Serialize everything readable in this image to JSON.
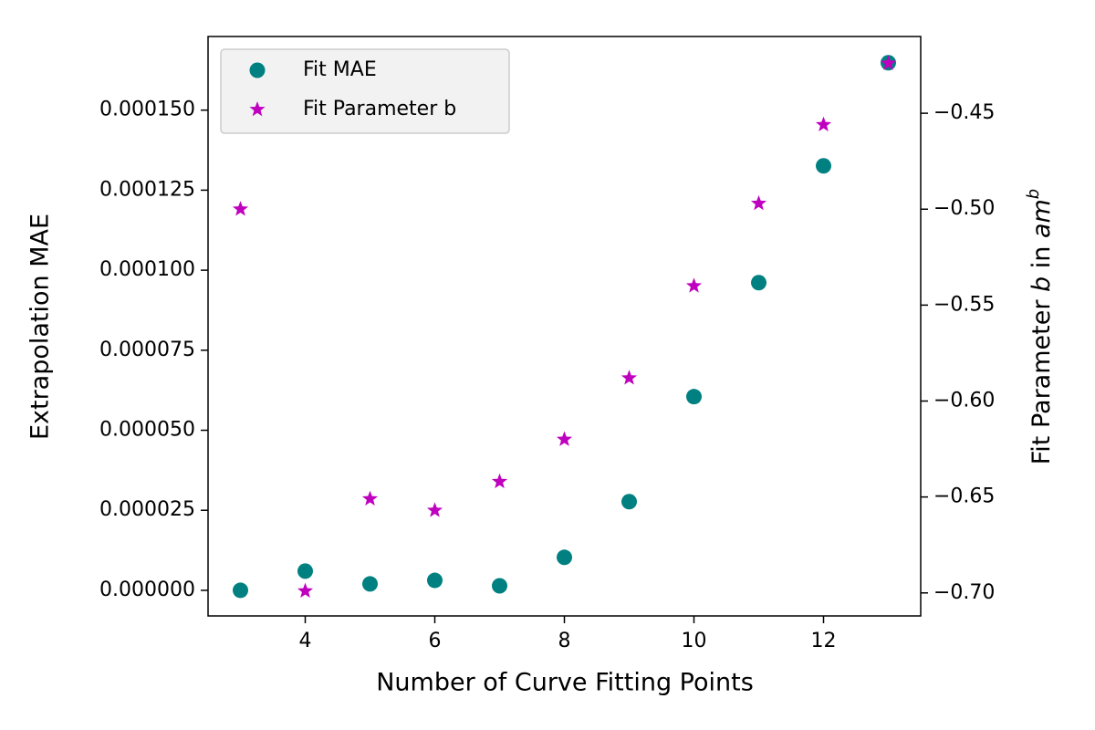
{
  "chart_data": {
    "type": "scatter",
    "xlabel": "Number of Curve Fitting Points",
    "ylabel": "Extrapolation MAE",
    "y2label": [
      "Fit Parameter ",
      "b",
      " in ",
      "am",
      "b"
    ],
    "x": [
      3,
      4,
      5,
      6,
      7,
      8,
      9,
      10,
      11,
      12,
      13
    ],
    "series": [
      {
        "name": "Fit MAE",
        "color": "#008080",
        "marker": "circle",
        "values": [
          0,
          6e-06,
          2e-06,
          3.1e-06,
          1.4e-06,
          1.03e-05,
          2.77e-05,
          6.05e-05,
          9.61e-05,
          0.0001326,
          0.0001648
        ]
      },
      {
        "name": "Fit Parameter b",
        "color": "#bf00bf",
        "marker": "star",
        "axis": "y2",
        "values": [
          -0.5,
          -0.699,
          -0.651,
          -0.657,
          -0.642,
          -0.62,
          -0.588,
          -0.54,
          -0.497,
          -0.456,
          -0.424
        ]
      }
    ],
    "xlim": [
      2.5,
      13.5
    ],
    "xticks": [
      4,
      6,
      8,
      10,
      12
    ],
    "ylim": [
      -8e-06,
      0.000173
    ],
    "yticks": [
      {
        "value": 0,
        "label": "0.000000"
      },
      {
        "value": 2.5e-05,
        "label": "0.000025"
      },
      {
        "value": 5e-05,
        "label": "0.000050"
      },
      {
        "value": 7.5e-05,
        "label": "0.000075"
      },
      {
        "value": 0.0001,
        "label": "0.000100"
      },
      {
        "value": 0.000125,
        "label": "0.000125"
      },
      {
        "value": 0.00015,
        "label": "0.000150"
      }
    ],
    "y2lim": [
      -0.712,
      -0.41
    ],
    "y2ticks": [
      {
        "value": -0.7,
        "label": "−0.70"
      },
      {
        "value": -0.65,
        "label": "−0.65"
      },
      {
        "value": -0.6,
        "label": "−0.60"
      },
      {
        "value": -0.55,
        "label": "−0.55"
      },
      {
        "value": -0.5,
        "label": "−0.50"
      },
      {
        "value": -0.45,
        "label": "−0.45"
      }
    ],
    "legend": "upper left"
  }
}
